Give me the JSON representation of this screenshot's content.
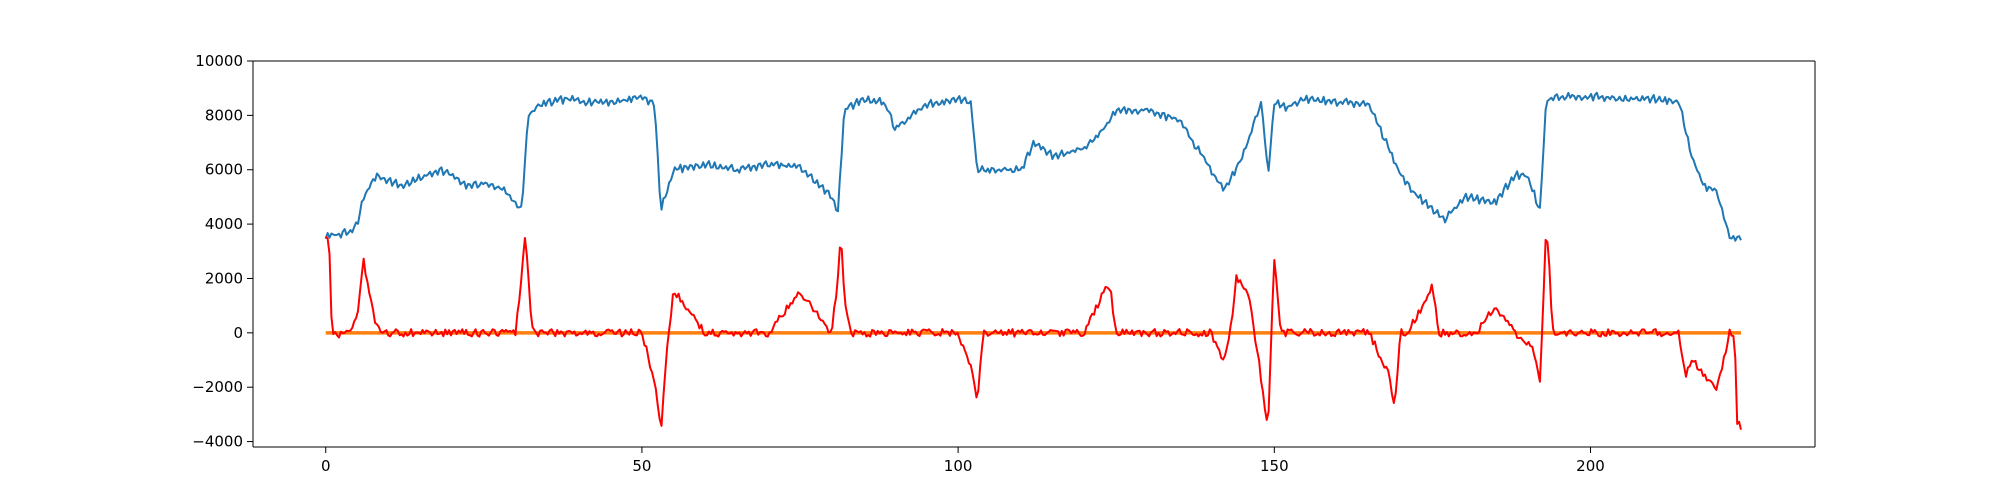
{
  "chart_data": {
    "type": "line",
    "xlim": [
      -11.5,
      235.5
    ],
    "ylim": [
      -4200,
      10000
    ],
    "xticks": [
      0,
      50,
      100,
      150,
      200
    ],
    "yticks": [
      -4000,
      -2000,
      0,
      2000,
      4000,
      6000,
      8000,
      10000
    ],
    "grid": false,
    "legend": "none",
    "series_meta": [
      {
        "color": "#1f77b4",
        "noise_amp": 150,
        "noise_period": 0.9
      },
      {
        "color": "#ff7f0e",
        "noise_amp": 0,
        "noise_period": 0.9
      },
      {
        "color": "#ff0000",
        "noise_amp": 280,
        "noise_period": 0.6
      }
    ],
    "series": [
      {
        "x": [
          0,
          1,
          4,
          5,
          6,
          8,
          10,
          12,
          15,
          18,
          20,
          22,
          25,
          28,
          30,
          31,
          32,
          34,
          38,
          42,
          46,
          50,
          52,
          53,
          55,
          60,
          65,
          70,
          75,
          80,
          81,
          82,
          85,
          88,
          89,
          90,
          95,
          100,
          102,
          103,
          105,
          110,
          112,
          115,
          120,
          123,
          125,
          130,
          135,
          140,
          142,
          145,
          148,
          149,
          150,
          152,
          155,
          160,
          165,
          170,
          172,
          175,
          177,
          180,
          185,
          188,
          190,
          192,
          193,
          195,
          200,
          205,
          210,
          214,
          216,
          218,
          220,
          222,
          224
        ],
        "y": [
          3500,
          3600,
          3700,
          4000,
          5000,
          5800,
          5600,
          5400,
          5700,
          6000,
          5800,
          5400,
          5500,
          5300,
          4800,
          4500,
          8000,
          8400,
          8600,
          8500,
          8500,
          8700,
          8400,
          4500,
          6000,
          6200,
          6000,
          6200,
          6100,
          5000,
          4500,
          8200,
          8600,
          8500,
          8200,
          7500,
          8400,
          8600,
          8500,
          6000,
          6000,
          6000,
          7000,
          6500,
          6800,
          7500,
          8200,
          8200,
          7800,
          6000,
          5200,
          6500,
          8500,
          5800,
          8500,
          8300,
          8600,
          8500,
          8400,
          5800,
          5200,
          4500,
          4200,
          5000,
          4800,
          5800,
          5800,
          4500,
          8600,
          8700,
          8700,
          8600,
          8600,
          8500,
          6500,
          5400,
          5200,
          3500,
          3500
        ]
      },
      {
        "x": [
          0,
          224
        ],
        "y": [
          0,
          0
        ]
      },
      {
        "x": [
          0,
          0.5,
          1,
          4,
          5,
          6,
          8,
          10,
          20,
          30,
          31,
          31.5,
          32,
          32.5,
          33,
          40,
          50,
          52,
          53,
          54,
          55,
          60,
          70,
          75,
          80,
          81,
          81.5,
          82,
          83,
          90,
          100,
          102,
          103,
          104,
          110,
          120,
          123,
          124,
          125,
          130,
          140,
          142,
          143,
          144,
          146,
          148,
          149,
          150,
          151,
          155,
          160,
          165,
          168,
          169,
          170,
          171,
          174,
          175,
          176,
          178,
          182,
          185,
          188,
          191,
          192,
          193,
          193.5,
          194,
          195,
          200,
          210,
          214,
          215,
          216,
          218,
          220,
          222,
          222.8,
          223.2,
          224
        ],
        "y": [
          3600,
          3500,
          -100,
          0,
          600,
          2600,
          200,
          0,
          0,
          0,
          2000,
          3600,
          2400,
          300,
          0,
          0,
          0,
          -1800,
          -3600,
          -500,
          1600,
          0,
          0,
          1500,
          0,
          2000,
          3700,
          1200,
          0,
          0,
          0,
          -1300,
          -2500,
          0,
          0,
          0,
          1500,
          1700,
          0,
          0,
          0,
          -1000,
          0,
          2000,
          1400,
          -1800,
          -3500,
          2800,
          0,
          0,
          0,
          0,
          -1500,
          -2600,
          0,
          0,
          1200,
          1800,
          0,
          0,
          0,
          1000,
          0,
          -600,
          -1900,
          4000,
          2300,
          0,
          0,
          0,
          0,
          0,
          -1700,
          -900,
          -1600,
          -2000,
          0,
          0,
          -3300,
          -3600
        ]
      }
    ]
  }
}
